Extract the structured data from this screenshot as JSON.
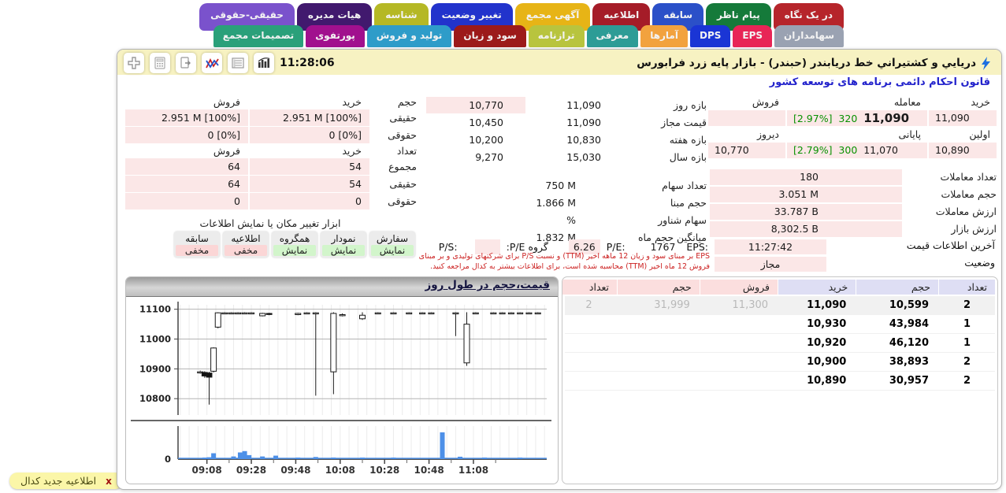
{
  "window": {
    "title": "دريايي و كشتيراني خط دريابندر (حبندر) - بازار پایه زرد فرابورس",
    "subtitle": "قانون احکام دائمی برنامه های توسعه کشور",
    "time": "11:28:06"
  },
  "tabs": {
    "top_row": [
      {
        "name": "at-a-glance",
        "label": "در یک نگاه",
        "color": "#b6252b"
      },
      {
        "name": "supervisor-message",
        "label": "پیام ناظر",
        "color": "#157a3a"
      },
      {
        "name": "history",
        "label": "سابقه",
        "color": "#2b50c8"
      },
      {
        "name": "announcement",
        "label": "اطلاعیه",
        "color": "#a51c28"
      },
      {
        "name": "assembly-notice",
        "label": "آگهی مجمع",
        "color": "#e7b416"
      },
      {
        "name": "status-change",
        "label": "تغییر وضعیت",
        "color": "#2233cc"
      },
      {
        "name": "identity",
        "label": "شناسه",
        "color": "#b5b825"
      },
      {
        "name": "board-of-directors",
        "label": "هیات مدیره",
        "color": "#41196e"
      },
      {
        "name": "real-legal",
        "label": "حقیقی-حقوقی",
        "color": "#7a52cc"
      }
    ],
    "bottom_row": [
      {
        "name": "shareholders",
        "label": "سهامداران",
        "color": "#9aa2b2"
      },
      {
        "name": "eps",
        "label": "EPS",
        "color": "#e82556"
      },
      {
        "name": "dps",
        "label": "DPS",
        "color": "#1a35d5"
      },
      {
        "name": "statistics",
        "label": "آمارها",
        "color": "#f2a23e"
      },
      {
        "name": "introduction",
        "label": "معرفی",
        "color": "#2d9c96"
      },
      {
        "name": "balance-sheet",
        "label": "ترازنامه",
        "color": "#b8c43e"
      },
      {
        "name": "profit-loss",
        "label": "سود و زیان",
        "color": "#9c1a1a"
      },
      {
        "name": "production-sales",
        "label": "تولید و فروش",
        "color": "#2e9cc9"
      },
      {
        "name": "portfolio",
        "label": "پورتفوی",
        "color": "#a1108e"
      },
      {
        "name": "assembly-decisions",
        "label": "تصمیمات مجمع",
        "color": "#2aa07a"
      }
    ]
  },
  "trade": {
    "headers": {
      "buy": "خرید",
      "trade": "معامله",
      "sell": "فروش",
      "first": "اولین",
      "close": "پایانی",
      "yesterday": "دیروز"
    },
    "buy_price": "11,090",
    "last_price": "11,090",
    "last_change": "320",
    "last_pct": "[2.97%]",
    "first_price": "10,890",
    "close_price": "11,070",
    "close_change": "300",
    "close_pct": "[2.79%]",
    "yesterday_price": "10,770"
  },
  "market_stats": [
    {
      "label": "تعداد معاملات",
      "value": "180"
    },
    {
      "label": "حجم معاملات",
      "value": "3.051 M"
    },
    {
      "label": "ارزش معاملات",
      "value": "33.787 B"
    },
    {
      "label": "ارزش بازار",
      "value": "8,302.5 B"
    }
  ],
  "ranges": [
    {
      "label": "بازه روز",
      "high": "11,090",
      "low": "10,770",
      "low_pink": true
    },
    {
      "label": "قیمت مجاز",
      "high": "11,090",
      "low": "10,450"
    },
    {
      "label": "بازه هفته",
      "high": "10,830",
      "low": "10,200"
    },
    {
      "label": "بازه سال",
      "high": "15,030",
      "low": "9,270"
    }
  ],
  "share_stats": [
    {
      "label": "تعداد سهام",
      "value": "750 M"
    },
    {
      "label": "حجم مبنا",
      "value": "1.866 M"
    },
    {
      "label": "سهام شناور",
      "value": "%"
    },
    {
      "label": "میانگین حجم ماه",
      "value": "1.832 M"
    }
  ],
  "client": {
    "volume_section": {
      "title": "حجم",
      "buy_header": "خرید",
      "sell_header": "فروش",
      "rows": [
        {
          "label": "حقیقی",
          "buy": "2.951 M [100%]",
          "sell": "2.951 M [100%]"
        },
        {
          "label": "حقوقی",
          "buy": "0 [0%]",
          "sell": "0 [0%]"
        }
      ]
    },
    "count_section": {
      "title": "تعداد",
      "buy_header": "خرید",
      "sell_header": "فروش",
      "rows": [
        {
          "label": "مجموع",
          "buy": "54",
          "sell": "64"
        },
        {
          "label": "حقیقی",
          "buy": "54",
          "sell": "64"
        },
        {
          "label": "حقوقی",
          "buy": "0",
          "sell": "0"
        }
      ]
    }
  },
  "tools": {
    "title": "ابزار تغییر مکان یا نمایش اطلاعات",
    "buttons": [
      {
        "name": "order",
        "label": "سفارش",
        "state": "نمایش",
        "active": true
      },
      {
        "name": "chart",
        "label": "نمودار",
        "state": "نمایش",
        "active": true
      },
      {
        "name": "peer-group",
        "label": "همگروه",
        "state": "نمایش",
        "active": true
      },
      {
        "name": "announcements",
        "label": "اطلاعیه",
        "state": "مخفی",
        "active": false
      },
      {
        "name": "history",
        "label": "سابقه",
        "state": "مخفی",
        "active": false
      }
    ]
  },
  "price_info": {
    "label": "آخرین اطلاعات قیمت",
    "time": "11:27:42",
    "eps_label": "EPS:",
    "eps_value": "1767",
    "pe_label": "P/E:",
    "pe_value": "6.26",
    "group_pe_label": "گروه P/E:",
    "group_pe_value": "",
    "ps_label": "P/S:",
    "ps_value": "",
    "status_label": "وضعیت",
    "status_value": "مجاز",
    "disclaimer": "EPS بر مبنای سود و زیان 12 ماهه اخیر (TTM) و نسبت P/S برای شرکتهای تولیدی و بر مبنای فروش 12 ماه اخیر (TTM) محاسبه شده است، برای اطلاعات بیشتر به کدال مراجعه کنید."
  },
  "order_book": {
    "headers": [
      "تعداد",
      "حجم",
      "خرید",
      "فروش",
      "حجم",
      "تعداد"
    ],
    "rows": [
      {
        "buy_count": "2",
        "buy_vol": "10,599",
        "buy_price": "11,090",
        "sell_price": "11,300",
        "sell_vol": "31,999",
        "sell_count": "2",
        "dim_sell": true,
        "shaded": true
      },
      {
        "buy_count": "1",
        "buy_vol": "43,984",
        "buy_price": "10,930",
        "sell_price": "",
        "sell_vol": "",
        "sell_count": ""
      },
      {
        "buy_count": "1",
        "buy_vol": "46,120",
        "buy_price": "10,920",
        "sell_price": "",
        "sell_vol": "",
        "sell_count": ""
      },
      {
        "buy_count": "2",
        "buy_vol": "38,893",
        "buy_price": "10,900",
        "sell_price": "",
        "sell_vol": "",
        "sell_count": ""
      },
      {
        "buy_count": "2",
        "buy_vol": "30,957",
        "buy_price": "10,890",
        "sell_price": "",
        "sell_vol": "",
        "sell_count": ""
      }
    ]
  },
  "chart_data": {
    "type": "candlestick+volume",
    "title": "قیمت،حجم در طول روز",
    "y_ticks": [
      11100,
      11000,
      10900,
      10800
    ],
    "ylim": [
      10745,
      11115
    ],
    "xlim_minutes": [
      -5,
      161
    ],
    "x_tick_minutes": [
      8,
      28,
      48,
      68,
      88,
      108,
      128
    ],
    "x_tick_labels": [
      "09:08",
      "09:28",
      "09:48",
      "10:08",
      "10:28",
      "10:48",
      "11:08"
    ],
    "volume_zero_label": "0",
    "volume_color": "#4d90e8",
    "candles": [
      [
        5,
        10890,
        10894,
        10884,
        10890
      ],
      [
        7,
        10888,
        10892,
        10870,
        10876
      ],
      [
        9,
        10886,
        10890,
        10780,
        10872
      ],
      [
        11,
        10892,
        10972,
        10888,
        10970
      ],
      [
        13,
        11040,
        11090,
        11036,
        11088
      ],
      [
        16,
        11088,
        11090,
        11086,
        11088
      ],
      [
        19,
        11088,
        11090,
        11086,
        11088
      ],
      [
        22,
        11088,
        11090,
        11086,
        11088
      ],
      [
        25,
        11088,
        11090,
        11086,
        11088
      ],
      [
        28,
        11088,
        11090,
        11086,
        11088
      ],
      [
        33,
        11078,
        11088,
        11076,
        11086
      ],
      [
        36,
        11086,
        11088,
        11080,
        11083
      ],
      [
        49,
        11082,
        11088,
        11080,
        11086
      ],
      [
        53,
        11088,
        11090,
        11086,
        11088
      ],
      [
        57,
        11088,
        11090,
        10810,
        11088
      ],
      [
        65,
        10890,
        11090,
        10815,
        11086
      ],
      [
        69,
        11082,
        11086,
        11076,
        11082
      ],
      [
        78,
        11068,
        11090,
        11064,
        11080
      ],
      [
        85,
        11088,
        11090,
        11086,
        11088
      ],
      [
        92,
        11088,
        11090,
        11086,
        11088
      ],
      [
        99,
        11088,
        11090,
        11086,
        11088
      ],
      [
        105,
        11088,
        11090,
        11086,
        11088
      ],
      [
        109,
        11088,
        11090,
        11086,
        11088
      ],
      [
        120,
        11088,
        11090,
        11010,
        11088
      ],
      [
        125,
        10920,
        11090,
        10910,
        11050
      ],
      [
        129,
        11088,
        11090,
        11084,
        11088
      ],
      [
        137,
        11088,
        11090,
        11086,
        11088
      ],
      [
        141,
        11088,
        11090,
        11086,
        11088
      ],
      [
        145,
        11088,
        11090,
        11086,
        11088
      ],
      [
        149,
        11088,
        11090,
        11086,
        11088
      ],
      [
        153,
        11088,
        11090,
        11086,
        11088
      ],
      [
        157,
        11088,
        11090,
        11086,
        11088
      ]
    ],
    "volumes": [
      [
        7,
        0.05
      ],
      [
        9,
        0.07
      ],
      [
        11,
        0.22
      ],
      [
        20,
        0.1
      ],
      [
        23,
        0.25
      ],
      [
        25,
        0.3
      ],
      [
        27,
        0.15
      ],
      [
        33,
        0.1
      ],
      [
        39,
        0.13
      ],
      [
        49,
        0.05
      ],
      [
        57,
        0.08
      ],
      [
        65,
        0.06
      ],
      [
        78,
        0.05
      ],
      [
        92,
        0.04
      ],
      [
        114,
        1.0
      ],
      [
        122,
        0.09
      ],
      [
        133,
        0.06
      ],
      [
        149,
        0.05
      ]
    ]
  },
  "notification": {
    "close": "x",
    "text": "اطلاعیه جدید کدال"
  }
}
